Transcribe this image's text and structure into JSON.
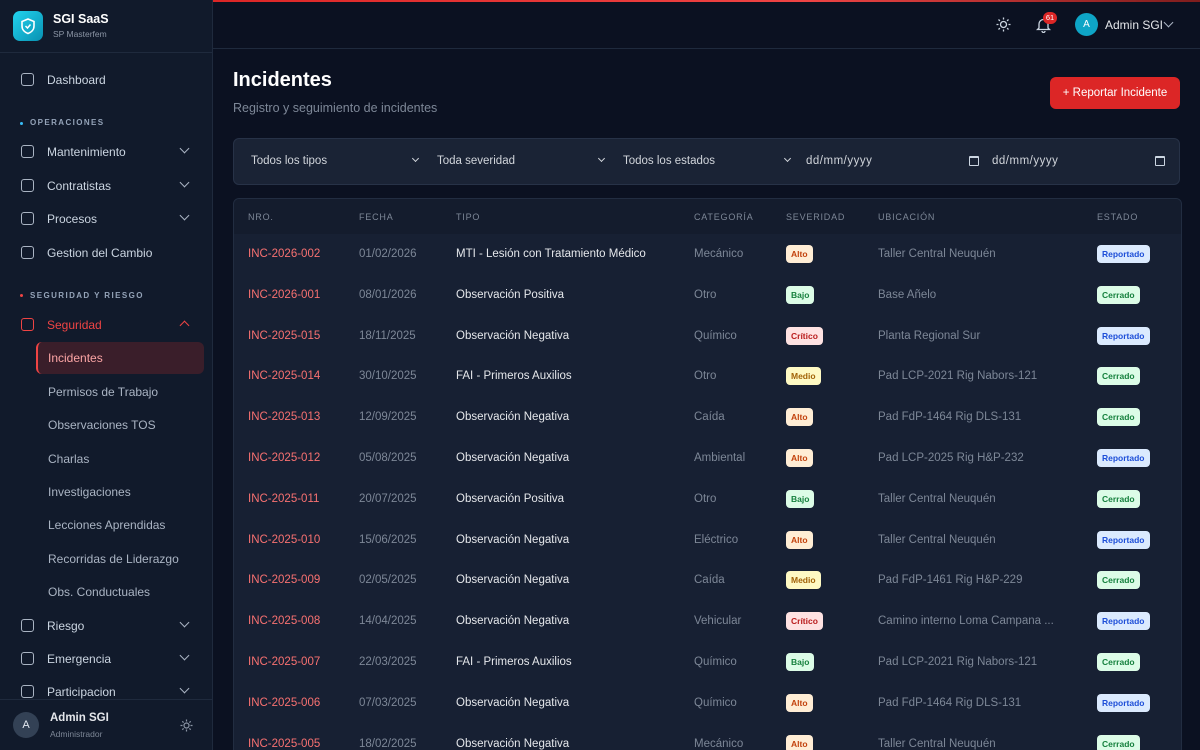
{
  "brand": {
    "name": "SGI SaaS",
    "subtitle": "SP Masterfem"
  },
  "sidebar": {
    "dashboard": "Dashboard",
    "sections": [
      {
        "heading": "OPERACIONES",
        "items": [
          {
            "label": "Mantenimiento",
            "expandable": true
          },
          {
            "label": "Contratistas",
            "expandable": true
          },
          {
            "label": "Procesos",
            "expandable": true
          },
          {
            "label": "Gestion del Cambio",
            "expandable": false
          }
        ]
      },
      {
        "heading": "SEGURIDAD Y RIESGO",
        "items": [
          {
            "label": "Seguridad",
            "expandable": true,
            "children": [
              {
                "label": "Incidentes",
                "active": true
              },
              {
                "label": "Permisos de Trabajo",
                "active": false
              },
              {
                "label": "Observaciones TOS",
                "active": false
              },
              {
                "label": "Charlas",
                "active": false
              },
              {
                "label": "Investigaciones",
                "active": false
              },
              {
                "label": "Lecciones Aprendidas",
                "active": false
              },
              {
                "label": "Recorridas de Liderazgo",
                "active": false
              },
              {
                "label": "Obs. Conductuales",
                "active": false
              }
            ]
          },
          {
            "label": "Riesgo",
            "expandable": true
          },
          {
            "label": "Emergencia",
            "expandable": true
          },
          {
            "label": "Participacion",
            "expandable": true
          }
        ]
      }
    ],
    "user": {
      "avatar": "A",
      "name": "Admin SGI",
      "role": "Administrador"
    }
  },
  "topbar": {
    "notifications": "61",
    "avatar": "A",
    "user": "Admin SGI"
  },
  "header": {
    "title": "Incidentes",
    "subtitle": "Registro y seguimiento de incidentes",
    "action": "+ Reportar Incidente"
  },
  "filters": {
    "selects": [
      "Todos los tipos",
      "Toda severidad",
      "Todos los estados"
    ],
    "dates": [
      "dd/mm/yyyy",
      "dd/mm/yyyy"
    ]
  },
  "table": {
    "columns": [
      "NRO.",
      "FECHA",
      "TIPO",
      "CATEGORÍA",
      "SEVERIDAD",
      "UBICACIÓN",
      "ESTADO"
    ],
    "rows": [
      {
        "id": "INC-2026-002",
        "date": "01/02/2026",
        "type": "MTI - Lesión con Tratamiento Médico",
        "category": "Mecánico",
        "severity": "Alto",
        "severity_color": "#c2410c",
        "severity_bg": "#ffedd5",
        "location": "Taller Central Neuquén",
        "status": "Reportado",
        "status_color": "#1d4ed8",
        "status_bg": "#dbeafe"
      },
      {
        "id": "INC-2026-001",
        "date": "08/01/2026",
        "type": "Observación Positiva",
        "category": "Otro",
        "severity": "Bajo",
        "severity_color": "#15803d",
        "severity_bg": "#dcfce7",
        "location": "Base Añelo",
        "status": "Cerrado",
        "status_color": "#15803d",
        "status_bg": "#dcfce7"
      },
      {
        "id": "INC-2025-015",
        "date": "18/11/2025",
        "type": "Observación Negativa",
        "category": "Químico",
        "severity": "Crítico",
        "severity_color": "#b91c1c",
        "severity_bg": "#fee2e2",
        "location": "Planta Regional Sur",
        "status": "Reportado",
        "status_color": "#1d4ed8",
        "status_bg": "#dbeafe"
      },
      {
        "id": "INC-2025-014",
        "date": "30/10/2025",
        "type": "FAI - Primeros Auxilios",
        "category": "Otro",
        "severity": "Medio",
        "severity_color": "#a16207",
        "severity_bg": "#fef9c3",
        "location": "Pad LCP-2021 Rig Nabors-121",
        "status": "Cerrado",
        "status_color": "#15803d",
        "status_bg": "#dcfce7"
      },
      {
        "id": "INC-2025-013",
        "date": "12/09/2025",
        "type": "Observación Negativa",
        "category": "Caída",
        "severity": "Alto",
        "severity_color": "#c2410c",
        "severity_bg": "#ffedd5",
        "location": "Pad FdP-1464 Rig DLS-131",
        "status": "Cerrado",
        "status_color": "#15803d",
        "status_bg": "#dcfce7"
      },
      {
        "id": "INC-2025-012",
        "date": "05/08/2025",
        "type": "Observación Negativa",
        "category": "Ambiental",
        "severity": "Alto",
        "severity_color": "#c2410c",
        "severity_bg": "#ffedd5",
        "location": "Pad LCP-2025 Rig H&P-232",
        "status": "Reportado",
        "status_color": "#1d4ed8",
        "status_bg": "#dbeafe"
      },
      {
        "id": "INC-2025-011",
        "date": "20/07/2025",
        "type": "Observación Positiva",
        "category": "Otro",
        "severity": "Bajo",
        "severity_color": "#15803d",
        "severity_bg": "#dcfce7",
        "location": "Taller Central Neuquén",
        "status": "Cerrado",
        "status_color": "#15803d",
        "status_bg": "#dcfce7"
      },
      {
        "id": "INC-2025-010",
        "date": "15/06/2025",
        "type": "Observación Negativa",
        "category": "Eléctrico",
        "severity": "Alto",
        "severity_color": "#c2410c",
        "severity_bg": "#ffedd5",
        "location": "Taller Central Neuquén",
        "status": "Reportado",
        "status_color": "#1d4ed8",
        "status_bg": "#dbeafe"
      },
      {
        "id": "INC-2025-009",
        "date": "02/05/2025",
        "type": "Observación Negativa",
        "category": "Caída",
        "severity": "Medio",
        "severity_color": "#a16207",
        "severity_bg": "#fef9c3",
        "location": "Pad FdP-1461 Rig H&P-229",
        "status": "Cerrado",
        "status_color": "#15803d",
        "status_bg": "#dcfce7"
      },
      {
        "id": "INC-2025-008",
        "date": "14/04/2025",
        "type": "Observación Negativa",
        "category": "Vehicular",
        "severity": "Crítico",
        "severity_color": "#b91c1c",
        "severity_bg": "#fee2e2",
        "location": "Camino interno Loma Campana ...",
        "status": "Reportado",
        "status_color": "#1d4ed8",
        "status_bg": "#dbeafe"
      },
      {
        "id": "INC-2025-007",
        "date": "22/03/2025",
        "type": "FAI - Primeros Auxilios",
        "category": "Químico",
        "severity": "Bajo",
        "severity_color": "#15803d",
        "severity_bg": "#dcfce7",
        "location": "Pad LCP-2021 Rig Nabors-121",
        "status": "Cerrado",
        "status_color": "#15803d",
        "status_bg": "#dcfce7"
      },
      {
        "id": "INC-2025-006",
        "date": "07/03/2025",
        "type": "Observación Negativa",
        "category": "Químico",
        "severity": "Alto",
        "severity_color": "#c2410c",
        "severity_bg": "#ffedd5",
        "location": "Pad FdP-1464 Rig DLS-131",
        "status": "Reportado",
        "status_color": "#1d4ed8",
        "status_bg": "#dbeafe"
      },
      {
        "id": "INC-2025-005",
        "date": "18/02/2025",
        "type": "Observación Negativa",
        "category": "Mecánico",
        "severity": "Alto",
        "severity_color": "#c2410c",
        "severity_bg": "#ffedd5",
        "location": "Taller Central Neuquén",
        "status": "Cerrado",
        "status_color": "#15803d",
        "status_bg": "#dcfce7"
      }
    ]
  }
}
